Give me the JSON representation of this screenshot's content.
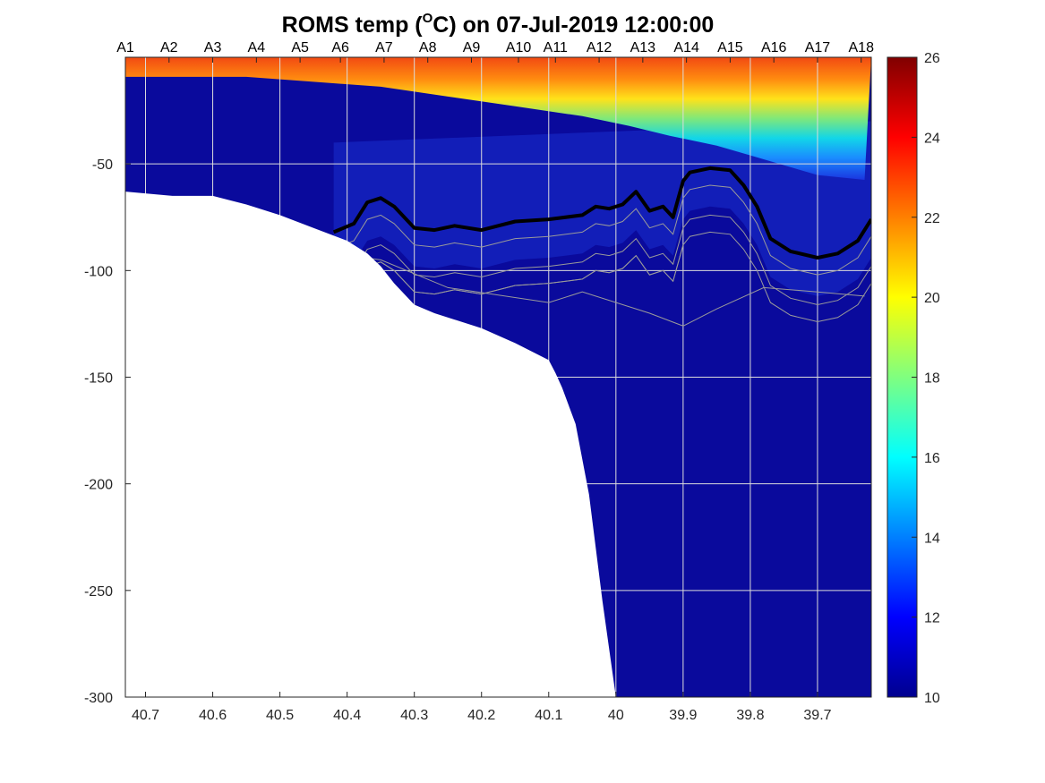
{
  "chart_data": {
    "type": "heatmap",
    "title": {
      "prefix": "ROMS temp (",
      "superscript": "O",
      "suffix": "C) on 07-Jul-2019 12:00:00"
    },
    "xlabel": "",
    "ylabel": "",
    "xlim": [
      40.73,
      39.62
    ],
    "ylim": [
      -300,
      0
    ],
    "x_ticks": [
      40.7,
      40.6,
      40.5,
      40.4,
      40.3,
      40.2,
      40.1,
      40,
      39.9,
      39.8,
      39.7
    ],
    "x_tick_labels": [
      "40.7",
      "40.6",
      "40.5",
      "40.4",
      "40.3",
      "40.2",
      "40.1",
      "40",
      "39.9",
      "39.8",
      "39.7"
    ],
    "y_ticks": [
      -50,
      -100,
      -150,
      -200,
      -250,
      -300
    ],
    "y_tick_labels": [
      "-50",
      "-100",
      "-150",
      "-200",
      "-250",
      "-300"
    ],
    "grid": true,
    "stations": {
      "labels": [
        "A1",
        "A2",
        "A3",
        "A4",
        "A5",
        "A6",
        "A7",
        "A8",
        "A9",
        "A10",
        "A11",
        "A12",
        "A13",
        "A14",
        "A15",
        "A16",
        "A17",
        "A18"
      ],
      "x": [
        40.73,
        40.665,
        40.6,
        40.535,
        40.47,
        40.41,
        40.345,
        40.28,
        40.215,
        40.145,
        40.09,
        40.025,
        39.96,
        39.895,
        39.83,
        39.765,
        39.7,
        39.635
      ]
    },
    "colorbar": {
      "range": [
        10,
        26
      ],
      "ticks": [
        10,
        12,
        14,
        16,
        18,
        20,
        22,
        24,
        26
      ],
      "tick_labels": [
        "10",
        "12",
        "14",
        "16",
        "18",
        "20",
        "22",
        "24",
        "26"
      ],
      "colormap": "jet"
    },
    "bathymetry": {
      "x": [
        40.73,
        40.66,
        40.6,
        40.55,
        40.5,
        40.45,
        40.4,
        40.37,
        40.35,
        40.33,
        40.3,
        40.27,
        40.2,
        40.15,
        40.1,
        40.09,
        40.08,
        40.06,
        40.04,
        40.02,
        40.0
      ],
      "depth": [
        -63,
        -65,
        -65,
        -69,
        -74,
        -80,
        -86,
        -92,
        -98,
        -106,
        -116,
        -120,
        -127,
        -134,
        -142,
        -148,
        -155,
        -172,
        -205,
        -255,
        -300
      ]
    },
    "mixed_layer": {
      "top_depth": [
        -4,
        -4,
        -4,
        -5,
        -6,
        -8,
        -10,
        -12,
        -14,
        -16,
        -18,
        -20,
        -22,
        -24,
        -25
      ],
      "x": [
        40.73,
        40.65,
        40.55,
        40.45,
        40.35,
        40.25,
        40.15,
        40.05,
        39.98,
        39.92,
        39.85,
        39.8,
        39.75,
        39.7,
        39.63
      ]
    },
    "isotherm_10": {
      "x": [
        40.42,
        40.39,
        40.37,
        40.35,
        40.33,
        40.3,
        40.27,
        40.24,
        40.2,
        40.15,
        40.1,
        40.05,
        40.03,
        40.01,
        39.99,
        39.97,
        39.95,
        39.93,
        39.915,
        39.9,
        39.89,
        39.86,
        39.83,
        39.81,
        39.79,
        39.77,
        39.74,
        39.7,
        39.67,
        39.64,
        39.62
      ],
      "depth": [
        -82,
        -78,
        -68,
        -66,
        -70,
        -80,
        -81,
        -79,
        -81,
        -77,
        -76,
        -74,
        -70,
        -71,
        -69,
        -63,
        -72,
        -70,
        -75,
        -58,
        -54,
        -52,
        -53,
        -60,
        -70,
        -85,
        -91,
        -94,
        -92,
        -86,
        -76
      ]
    }
  }
}
